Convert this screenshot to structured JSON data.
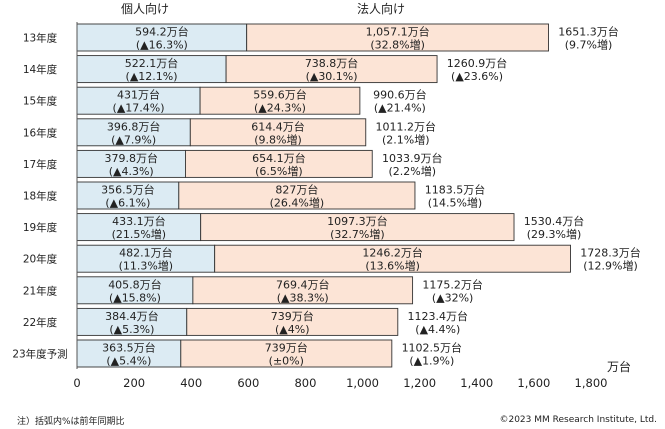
{
  "chart_data": {
    "type": "bar",
    "orientation": "horizontal",
    "stacked": true,
    "categories": [
      "13年度",
      "14年度",
      "15年度",
      "16年度",
      "17年度",
      "18年度",
      "19年度",
      "20年度",
      "21年度",
      "22年度",
      "23年度予測"
    ],
    "series": [
      {
        "name": "個人向け",
        "color": "#dcebf3",
        "values": [
          594.2,
          522.1,
          431,
          396.8,
          379.8,
          356.5,
          433.1,
          482.1,
          405.8,
          384.4,
          363.5
        ],
        "value_labels": [
          "594.2万台",
          "522.1万台",
          "431万台",
          "396.8万台",
          "379.8万台",
          "356.5万台",
          "433.1万台",
          "482.1万台",
          "405.8万台",
          "384.4万台",
          "363.5万台"
        ],
        "change_labels": [
          "(▲16.3%)",
          "(▲12.1%)",
          "(▲17.4%)",
          "(▲7.9%)",
          "(▲4.3%)",
          "(▲6.1%)",
          "(21.5%増)",
          "(11.3%増)",
          "(▲15.8%)",
          "(▲5.3%)",
          "(▲5.4%)"
        ]
      },
      {
        "name": "法人向け",
        "color": "#fce4d6",
        "values": [
          1057.1,
          738.8,
          559.6,
          614.4,
          654.1,
          827,
          1097.3,
          1246.2,
          769.4,
          739,
          739
        ],
        "value_labels": [
          "1,057.1万台",
          "738.8万台",
          "559.6万台",
          "614.4万台",
          "654.1万台",
          "827万台",
          "1097.3万台",
          "1246.2万台",
          "769.4万台",
          "739万台",
          "739万台"
        ],
        "change_labels": [
          "(32.8%増)",
          "(▲30.1%)",
          "(▲24.3%)",
          "(9.8%増)",
          "(6.5%増)",
          "(26.4%増)",
          "(32.7%増)",
          "(13.6%増)",
          "(▲38.3%)",
          "(▲4%)",
          "(±0%)"
        ]
      }
    ],
    "totals": {
      "values": [
        1651.3,
        1260.9,
        990.6,
        1011.2,
        1033.9,
        1183.5,
        1530.4,
        1728.3,
        1175.2,
        1123.4,
        1102.5
      ],
      "value_labels": [
        "1651.3万台",
        "1260.9万台",
        "990.6万台",
        "1011.2万台",
        "1033.9万台",
        "1183.5万台",
        "1530.4万台",
        "1728.3万台",
        "1175.2万台",
        "1123.4万台",
        "1102.5万台"
      ],
      "change_labels": [
        "(9.7%増)",
        "(▲23.6%)",
        "(▲21.4%)",
        "(2.1%増)",
        "(2.2%増)",
        "(14.5%増)",
        "(29.3%増)",
        "(12.9%増)",
        "(▲32%)",
        "(▲4.4%)",
        "(▲1.9%)"
      ]
    },
    "xlim": [
      0,
      1800
    ],
    "xticks": [
      0,
      200,
      400,
      600,
      800,
      1000,
      1200,
      1400,
      1600,
      1800
    ],
    "xtick_labels": [
      "0",
      "200",
      "400",
      "600",
      "800",
      "1,000",
      "1,200",
      "1,400",
      "1,600",
      "1,800"
    ],
    "xlabel": "万台",
    "grid": false,
    "legend_placement": "top",
    "bar_stroke": "#333333"
  },
  "footnote": "注）括弧内%は前年同期比",
  "copyright": "©2023 MM Research Institute, Ltd."
}
